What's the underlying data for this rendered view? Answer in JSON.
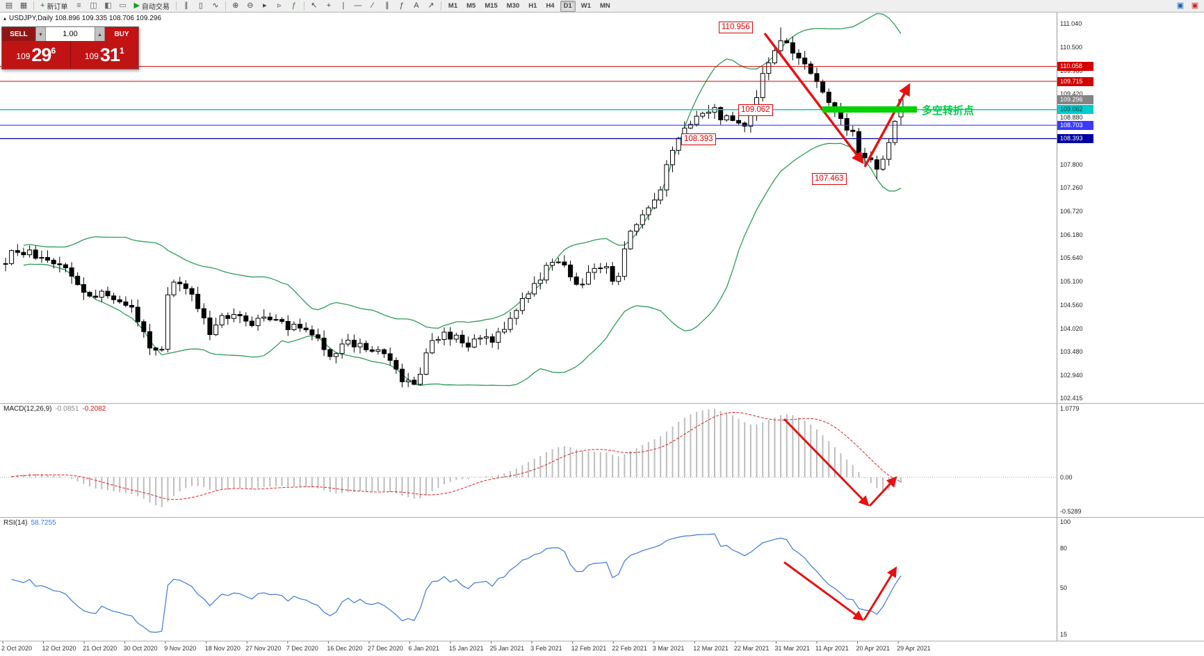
{
  "toolbar": {
    "active_timeframe": "D1",
    "items": [
      {
        "name": "chart-window-icon",
        "glyph": "▤",
        "color": "#555555"
      },
      {
        "name": "tile-windows-icon",
        "glyph": "▦",
        "color": "#555555"
      },
      {
        "type": "sep"
      },
      {
        "name": "new-order-button",
        "glyph": "+",
        "color": "#0a7f0a",
        "label": "新订单"
      },
      {
        "name": "market-watch-icon",
        "glyph": "≡",
        "color": "#666666"
      },
      {
        "name": "data-window-icon",
        "glyph": "◫",
        "color": "#666666"
      },
      {
        "name": "navigator-icon",
        "glyph": "◧",
        "color": "#666666"
      },
      {
        "name": "terminal-icon",
        "glyph": "▭",
        "color": "#666666"
      },
      {
        "name": "autotrading-button",
        "glyph": "▶",
        "color": "#12a112",
        "label": "自动交易"
      },
      {
        "type": "sep"
      },
      {
        "name": "ohlc-bars-icon",
        "glyph": "∥",
        "color": "#444444"
      },
      {
        "name": "candlestick-icon",
        "glyph": "▯",
        "color": "#444444"
      },
      {
        "name": "line-chart-icon",
        "glyph": "∿",
        "color": "#444444"
      },
      {
        "type": "sep"
      },
      {
        "name": "zoom-in-icon",
        "glyph": "⊕",
        "color": "#444444"
      },
      {
        "name": "zoom-out-icon",
        "glyph": "⊖",
        "color": "#444444"
      },
      {
        "name": "auto-scroll-icon",
        "glyph": "▸",
        "color": "#444444"
      },
      {
        "name": "chart-shift-icon",
        "glyph": "▹",
        "color": "#444444"
      },
      {
        "name": "indicators-icon",
        "glyph": "ƒ",
        "color": "#2c7a2c"
      },
      {
        "type": "sep"
      },
      {
        "name": "cursor-icon",
        "glyph": "↖",
        "color": "#444444"
      },
      {
        "name": "crosshair-icon",
        "glyph": "+",
        "color": "#444444"
      },
      {
        "name": "vertical-line-icon",
        "glyph": "|",
        "color": "#444444"
      },
      {
        "name": "horizontal-line-icon",
        "glyph": "—",
        "color": "#444444"
      },
      {
        "name": "trendline-icon",
        "glyph": "∕",
        "color": "#444444"
      },
      {
        "name": "channel-icon",
        "glyph": "∥",
        "color": "#444444"
      },
      {
        "name": "fibonacci-icon",
        "glyph": "ƒ",
        "color": "#444444"
      },
      {
        "name": "text-label-icon",
        "glyph": "A",
        "color": "#444444"
      },
      {
        "name": "arrows-icon",
        "glyph": "↗",
        "color": "#444444"
      },
      {
        "type": "sep"
      },
      {
        "type": "tf",
        "label": "M1"
      },
      {
        "type": "tf",
        "label": "M5"
      },
      {
        "type": "tf",
        "label": "M15"
      },
      {
        "type": "tf",
        "label": "M30"
      },
      {
        "type": "tf",
        "label": "H1"
      },
      {
        "type": "tf",
        "label": "H4"
      },
      {
        "type": "tf",
        "label": "D1"
      },
      {
        "type": "tf",
        "label": "W1"
      },
      {
        "type": "tf",
        "label": "MN"
      },
      {
        "type": "spacer"
      },
      {
        "name": "chart-profile-icon",
        "glyph": "▣",
        "color": "#1565c0"
      },
      {
        "name": "help-icon",
        "glyph": "▣",
        "color": "#c62828"
      }
    ]
  },
  "chart_header": {
    "icon": "▴",
    "text": "USDJPY,Daily  108.896 109.335 108.706 109.296"
  },
  "trade_panel": {
    "sell_label": "SELL",
    "buy_label": "BUY",
    "volume": "1.00",
    "spin_down": "▾",
    "spin_up": "▴",
    "sell_price": {
      "prefix": "109",
      "big": "29",
      "sup": "6"
    },
    "buy_price": {
      "prefix": "109",
      "big": "31",
      "sup": "1"
    }
  },
  "price_axis": {
    "ticks": [
      "111.040",
      "110.500",
      "109.960",
      "109.420",
      "108.880",
      "108.340",
      "107.800",
      "107.260",
      "106.720",
      "106.180",
      "105.640",
      "105.100",
      "104.560",
      "104.020",
      "103.480",
      "102.940",
      "102.415"
    ],
    "tags": [
      {
        "label": "110.058",
        "bg": "#d40000",
        "fg": "#ffffff",
        "line": "#d40000",
        "lw": 1
      },
      {
        "label": "109.715",
        "bg": "#d40000",
        "fg": "#ffffff",
        "line": "#d40000",
        "lw": 1
      },
      {
        "label": "109.296",
        "bg": "#848484",
        "fg": "#ffffff",
        "line": null,
        "lw": 0
      },
      {
        "label": "109.062",
        "bg": "#00cccc",
        "fg": "#063b3b",
        "line": "#00cccc",
        "lw": 1.5
      },
      {
        "label": "108.703",
        "bg": "#3a3aff",
        "fg": "#ffffff",
        "line": "#3a3aff",
        "lw": 1.2
      },
      {
        "label": "108.393",
        "bg": "#0000a0",
        "fg": "#ffffff",
        "line": "#0000a0",
        "lw": 1.2
      }
    ]
  },
  "annotations": {
    "peak": "110.956",
    "pivot": "109.062",
    "support": "108.393",
    "low": "107.463",
    "pivot_text": "多空转折点",
    "accent": "#e00000",
    "green": "#00cc44"
  },
  "date_axis": [
    "2 Oct 2020",
    "12 Oct 2020",
    "21 Oct 2020",
    "30 Oct 2020",
    "9 Nov 2020",
    "18 Nov 2020",
    "27 Nov 2020",
    "7 Dec 2020",
    "16 Dec 2020",
    "27 Dec 2020",
    "6 Jan 2021",
    "15 Jan 2021",
    "25 Jan 2021",
    "3 Feb 2021",
    "12 Feb 2021",
    "22 Feb 2021",
    "3 Mar 2021",
    "12 Mar 2021",
    "22 Mar 2021",
    "31 Mar 2021",
    "11 Apr 2021",
    "20 Apr 2021",
    "29 Apr 2021"
  ],
  "chart_data": {
    "type": "candlestick",
    "symbol": "USDJPY",
    "timeframe": "Daily",
    "num_candles": 150,
    "price_range": [
      102.3,
      111.3
    ],
    "last_candle": {
      "o": 108.896,
      "h": 109.335,
      "l": 108.706,
      "c": 109.296
    },
    "peak_high": 110.956,
    "trough_low": 107.463,
    "keypoints": [
      [
        0,
        105.6
      ],
      [
        0.014,
        105.85
      ],
      [
        0.03,
        105.7
      ],
      [
        0.045,
        105.5
      ],
      [
        0.068,
        105.45
      ],
      [
        0.091,
        104.7
      ],
      [
        0.11,
        104.85
      ],
      [
        0.125,
        104.55
      ],
      [
        0.136,
        104.6
      ],
      [
        0.15,
        104.1
      ],
      [
        0.163,
        103.45
      ],
      [
        0.175,
        103.6
      ],
      [
        0.182,
        104.9
      ],
      [
        0.195,
        105.1
      ],
      [
        0.21,
        104.7
      ],
      [
        0.227,
        103.95
      ],
      [
        0.245,
        104.3
      ],
      [
        0.26,
        104.45
      ],
      [
        0.273,
        104.05
      ],
      [
        0.29,
        104.3
      ],
      [
        0.305,
        104.15
      ],
      [
        0.318,
        104.0
      ],
      [
        0.335,
        104.1
      ],
      [
        0.35,
        103.75
      ],
      [
        0.364,
        103.4
      ],
      [
        0.38,
        103.75
      ],
      [
        0.395,
        103.6
      ],
      [
        0.409,
        103.55
      ],
      [
        0.43,
        103.25
      ],
      [
        0.448,
        102.72
      ],
      [
        0.462,
        102.9
      ],
      [
        0.47,
        103.5
      ],
      [
        0.485,
        103.9
      ],
      [
        0.5,
        103.8
      ],
      [
        0.515,
        103.65
      ],
      [
        0.53,
        103.7
      ],
      [
        0.545,
        103.78
      ],
      [
        0.56,
        104.1
      ],
      [
        0.575,
        104.7
      ],
      [
        0.591,
        105.0
      ],
      [
        0.605,
        105.45
      ],
      [
        0.62,
        105.6
      ],
      [
        0.636,
        104.95
      ],
      [
        0.65,
        105.25
      ],
      [
        0.665,
        105.5
      ],
      [
        0.682,
        105.1
      ],
      [
        0.695,
        106.1
      ],
      [
        0.71,
        106.6
      ],
      [
        0.727,
        106.95
      ],
      [
        0.74,
        107.9
      ],
      [
        0.755,
        108.45
      ],
      [
        0.773,
        109.0
      ],
      [
        0.788,
        109.1
      ],
      [
        0.8,
        108.85
      ],
      [
        0.818,
        108.8
      ],
      [
        0.83,
        108.65
      ],
      [
        0.845,
        109.9
      ],
      [
        0.858,
        110.4
      ],
      [
        0.864,
        110.7
      ],
      [
        0.872,
        110.6
      ],
      [
        0.885,
        110.3
      ],
      [
        0.895,
        109.95
      ],
      [
        0.909,
        109.65
      ],
      [
        0.92,
        109.1
      ],
      [
        0.935,
        108.8
      ],
      [
        0.947,
        108.45
      ],
      [
        0.955,
        108.05
      ],
      [
        0.966,
        107.9
      ],
      [
        0.975,
        107.6
      ],
      [
        0.984,
        108.1
      ],
      [
        0.992,
        108.75
      ],
      [
        1,
        109.296
      ]
    ],
    "bollinger": {
      "period": 20,
      "deviation": 2,
      "color": "#2e9b57"
    },
    "candle_colors": {
      "up": "#ffffff",
      "down": "#000000",
      "outline": "#000000"
    },
    "macd": {
      "label": "MACD(12,26,9)",
      "value": "-0.0851",
      "signal_value": "-0.2082",
      "fast": 12,
      "slow": 26,
      "signal": 9,
      "axis_labels": [
        "1.0779",
        "0.00",
        "-0.5289"
      ],
      "range": [
        -0.62,
        1.15
      ],
      "hist_color": "#bdbdbd",
      "signal_color": "#e02020"
    },
    "rsi": {
      "label": "RSI(14)",
      "value": "58.7255",
      "period": 14,
      "axis_labels": [
        "100",
        "80",
        "50",
        "15"
      ],
      "range": [
        10,
        103
      ],
      "color": "#3c78d8"
    }
  }
}
